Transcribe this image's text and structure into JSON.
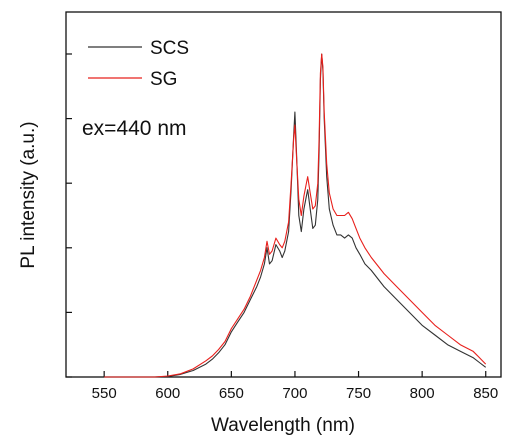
{
  "chart_data": {
    "type": "line",
    "title": "",
    "xlabel": "Wavelength (nm)",
    "ylabel": "PL intensity (a.u.)",
    "xlim": [
      520,
      862
    ],
    "ylim": [
      0,
      1.13
    ],
    "x_ticks": [
      550,
      600,
      650,
      700,
      750,
      800,
      850
    ],
    "y_ticks": [
      0.0,
      0.2,
      0.4,
      0.6,
      0.8,
      1.0
    ],
    "y_tick_labels_shown": false,
    "grid": false,
    "legend": {
      "placement": "top-left"
    },
    "annotation": "ex=440 nm",
    "series": [
      {
        "name": "SCS",
        "color": "#333333",
        "x": [
          550,
          560,
          570,
          580,
          590,
          600,
          610,
          620,
          630,
          635,
          640,
          645,
          650,
          655,
          660,
          665,
          670,
          673,
          676,
          678,
          680,
          682,
          685,
          688,
          690,
          692,
          695,
          697,
          699,
          700,
          701,
          703,
          705,
          707,
          709,
          710,
          712,
          714,
          716,
          718,
          719,
          720,
          721,
          722,
          723,
          725,
          727,
          730,
          733,
          736,
          739,
          742,
          745,
          748,
          751,
          755,
          760,
          770,
          780,
          790,
          800,
          810,
          820,
          830,
          840,
          845,
          850
        ],
        "y": [
          0.0,
          0.0,
          0.0,
          0.0,
          0.0,
          0.002,
          0.008,
          0.02,
          0.04,
          0.055,
          0.075,
          0.1,
          0.14,
          0.17,
          0.2,
          0.24,
          0.28,
          0.31,
          0.35,
          0.4,
          0.35,
          0.36,
          0.41,
          0.39,
          0.37,
          0.39,
          0.45,
          0.58,
          0.75,
          0.82,
          0.72,
          0.5,
          0.45,
          0.52,
          0.56,
          0.58,
          0.52,
          0.46,
          0.47,
          0.55,
          0.7,
          0.92,
          1.0,
          0.95,
          0.8,
          0.62,
          0.52,
          0.47,
          0.44,
          0.44,
          0.43,
          0.44,
          0.43,
          0.4,
          0.38,
          0.35,
          0.33,
          0.28,
          0.24,
          0.2,
          0.16,
          0.13,
          0.1,
          0.08,
          0.06,
          0.045,
          0.03
        ]
      },
      {
        "name": "SG",
        "color": "#e8201c",
        "x": [
          550,
          560,
          570,
          580,
          590,
          600,
          610,
          620,
          630,
          635,
          640,
          645,
          650,
          655,
          660,
          665,
          670,
          673,
          676,
          678,
          680,
          682,
          685,
          688,
          690,
          692,
          695,
          697,
          699,
          700,
          701,
          703,
          705,
          707,
          709,
          710,
          712,
          714,
          716,
          718,
          719,
          720,
          721,
          722,
          723,
          725,
          727,
          730,
          733,
          736,
          739,
          742,
          745,
          748,
          751,
          755,
          760,
          770,
          780,
          790,
          800,
          810,
          820,
          830,
          840,
          845,
          850
        ],
        "y": [
          0.0,
          0.0,
          0.0,
          0.0,
          0.0,
          0.003,
          0.01,
          0.025,
          0.05,
          0.065,
          0.085,
          0.11,
          0.15,
          0.18,
          0.21,
          0.25,
          0.3,
          0.33,
          0.37,
          0.42,
          0.38,
          0.39,
          0.43,
          0.41,
          0.4,
          0.42,
          0.48,
          0.6,
          0.74,
          0.78,
          0.7,
          0.55,
          0.5,
          0.56,
          0.6,
          0.62,
          0.57,
          0.52,
          0.53,
          0.6,
          0.74,
          0.94,
          1.0,
          0.96,
          0.82,
          0.66,
          0.57,
          0.52,
          0.5,
          0.5,
          0.5,
          0.51,
          0.49,
          0.46,
          0.43,
          0.4,
          0.37,
          0.32,
          0.28,
          0.24,
          0.2,
          0.16,
          0.13,
          0.1,
          0.08,
          0.06,
          0.04
        ]
      }
    ]
  }
}
